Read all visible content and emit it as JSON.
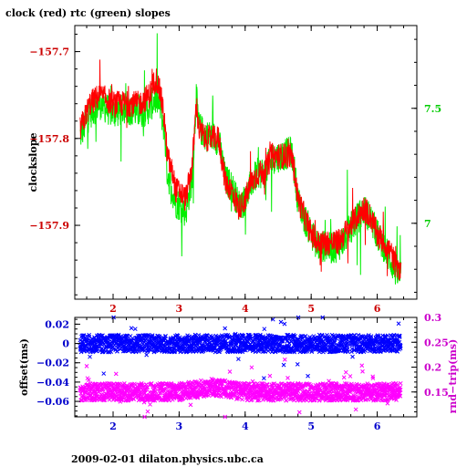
{
  "title": "clock (red) rtc (green) slopes",
  "footer": "2009-02-01  dilaton.physics.ubc.ca",
  "colors": {
    "clock": "#ff0000",
    "rtc": "#00ee00",
    "offset": "#0000ff",
    "rndtrip": "#ff00ff",
    "axis": "#000000",
    "left_tick_top": "#cc0000",
    "right_tick_top": "#00cc00",
    "left_tick_bottom": "#0000cc",
    "right_tick_bottom": "#cc00cc"
  },
  "chart_data": [
    {
      "type": "line",
      "ylabel": "clockslope",
      "xlim": [
        1.42,
        6.6
      ],
      "ylim": [
        -157.985,
        -157.67
      ],
      "y2lim": [
        6.67,
        7.86
      ],
      "xticks": [
        2,
        3,
        4,
        5,
        6
      ],
      "xtick_labels": [
        "2",
        "3",
        "4",
        "5",
        "6"
      ],
      "yticks": [
        -157.7,
        -157.8,
        -157.9
      ],
      "ytick_labels": [
        "−157.7",
        "−157.8",
        "−157.9"
      ],
      "y2ticks": [
        7.5,
        7
      ],
      "y2tick_labels": [
        "7.5",
        "7"
      ],
      "series": [
        {
          "name": "clock",
          "axis": "left",
          "x": [
            1.5,
            1.65,
            1.8,
            2.0,
            2.2,
            2.4,
            2.55,
            2.65,
            2.72,
            2.78,
            2.82,
            2.86,
            2.9,
            2.95,
            3.0,
            3.1,
            3.2,
            3.26,
            3.3,
            3.4,
            3.5,
            3.6,
            3.7,
            3.8,
            3.9,
            4.0,
            4.1,
            4.2,
            4.3,
            4.4,
            4.5,
            4.6,
            4.7,
            4.75,
            4.8,
            4.9,
            5.0,
            5.1,
            5.2,
            5.3,
            5.4,
            5.5,
            5.6,
            5.7,
            5.8,
            5.9,
            6.0,
            6.1,
            6.2,
            6.3,
            6.36
          ],
          "y": [
            -157.79,
            -157.76,
            -157.75,
            -157.76,
            -157.76,
            -157.76,
            -157.75,
            -157.73,
            -157.75,
            -157.78,
            -157.82,
            -157.83,
            -157.84,
            -157.86,
            -157.86,
            -157.87,
            -157.83,
            -157.76,
            -157.79,
            -157.8,
            -157.8,
            -157.8,
            -157.85,
            -157.86,
            -157.88,
            -157.87,
            -157.85,
            -157.84,
            -157.84,
            -157.82,
            -157.82,
            -157.82,
            -157.82,
            -157.84,
            -157.87,
            -157.89,
            -157.91,
            -157.92,
            -157.92,
            -157.92,
            -157.92,
            -157.91,
            -157.9,
            -157.89,
            -157.88,
            -157.89,
            -157.91,
            -157.92,
            -157.93,
            -157.95,
            -157.95
          ]
        },
        {
          "name": "rtc",
          "axis": "right",
          "x": [
            1.5,
            1.65,
            1.8,
            2.0,
            2.2,
            2.4,
            2.55,
            2.65,
            2.72,
            2.78,
            2.82,
            2.86,
            2.9,
            2.95,
            3.0,
            3.1,
            3.2,
            3.26,
            3.3,
            3.4,
            3.5,
            3.6,
            3.7,
            3.8,
            3.9,
            4.0,
            4.1,
            4.2,
            4.3,
            4.4,
            4.5,
            4.6,
            4.7,
            4.75,
            4.8,
            4.9,
            5.0,
            5.1,
            5.2,
            5.3,
            5.4,
            5.5,
            5.6,
            5.7,
            5.8,
            5.9,
            6.0,
            6.1,
            6.2,
            6.3,
            6.36
          ],
          "y": [
            7.38,
            7.48,
            7.52,
            7.48,
            7.5,
            7.48,
            7.5,
            7.55,
            7.5,
            7.4,
            7.22,
            7.18,
            7.14,
            7.09,
            7.08,
            7.05,
            7.2,
            7.55,
            7.42,
            7.38,
            7.38,
            7.36,
            7.19,
            7.16,
            7.08,
            7.1,
            7.18,
            7.22,
            7.22,
            7.28,
            7.29,
            7.3,
            7.31,
            7.22,
            7.1,
            7.02,
            6.96,
            6.9,
            6.9,
            6.89,
            6.9,
            6.93,
            6.98,
            7.02,
            7.06,
            7.02,
            6.95,
            6.9,
            6.84,
            6.78,
            6.77
          ]
        }
      ]
    },
    {
      "type": "scatter",
      "ylabel": "offset(ms)",
      "y2label": "rnd−trip(ms)",
      "xlim": [
        1.42,
        6.6
      ],
      "ylim": [
        -0.076,
        0.027
      ],
      "y2lim": [
        0.1,
        0.3
      ],
      "xticks": [
        2,
        3,
        4,
        5,
        6
      ],
      "xtick_labels": [
        "2",
        "3",
        "4",
        "5",
        "6"
      ],
      "yticks": [
        0.02,
        0,
        -0.02,
        -0.04,
        -0.06
      ],
      "ytick_labels": [
        "0.02",
        "0",
        "−0.02",
        "−0.04",
        "−0.06"
      ],
      "y2ticks": [
        0.3,
        0.25,
        0.2,
        0.15
      ],
      "y2tick_labels": [
        "0.3",
        "0.25",
        "0.2",
        "0.15"
      ],
      "series": [
        {
          "name": "offset",
          "axis": "left",
          "x": [
            1.5,
            2.0,
            2.5,
            3.0,
            3.5,
            4.0,
            4.5,
            5.0,
            5.5,
            6.0,
            6.36
          ],
          "y": [
            0.0,
            0.0,
            0.0,
            0.0,
            0.0,
            0.0,
            0.0,
            0.0,
            0.0,
            0.0,
            0.0
          ]
        },
        {
          "name": "rndtrip",
          "axis": "right",
          "x": [
            1.5,
            2.0,
            2.5,
            3.0,
            3.5,
            4.0,
            4.5,
            5.0,
            5.5,
            6.0,
            6.36
          ],
          "y": [
            0.15,
            0.15,
            0.15,
            0.15,
            0.16,
            0.15,
            0.15,
            0.15,
            0.15,
            0.15,
            0.15
          ]
        }
      ]
    }
  ]
}
